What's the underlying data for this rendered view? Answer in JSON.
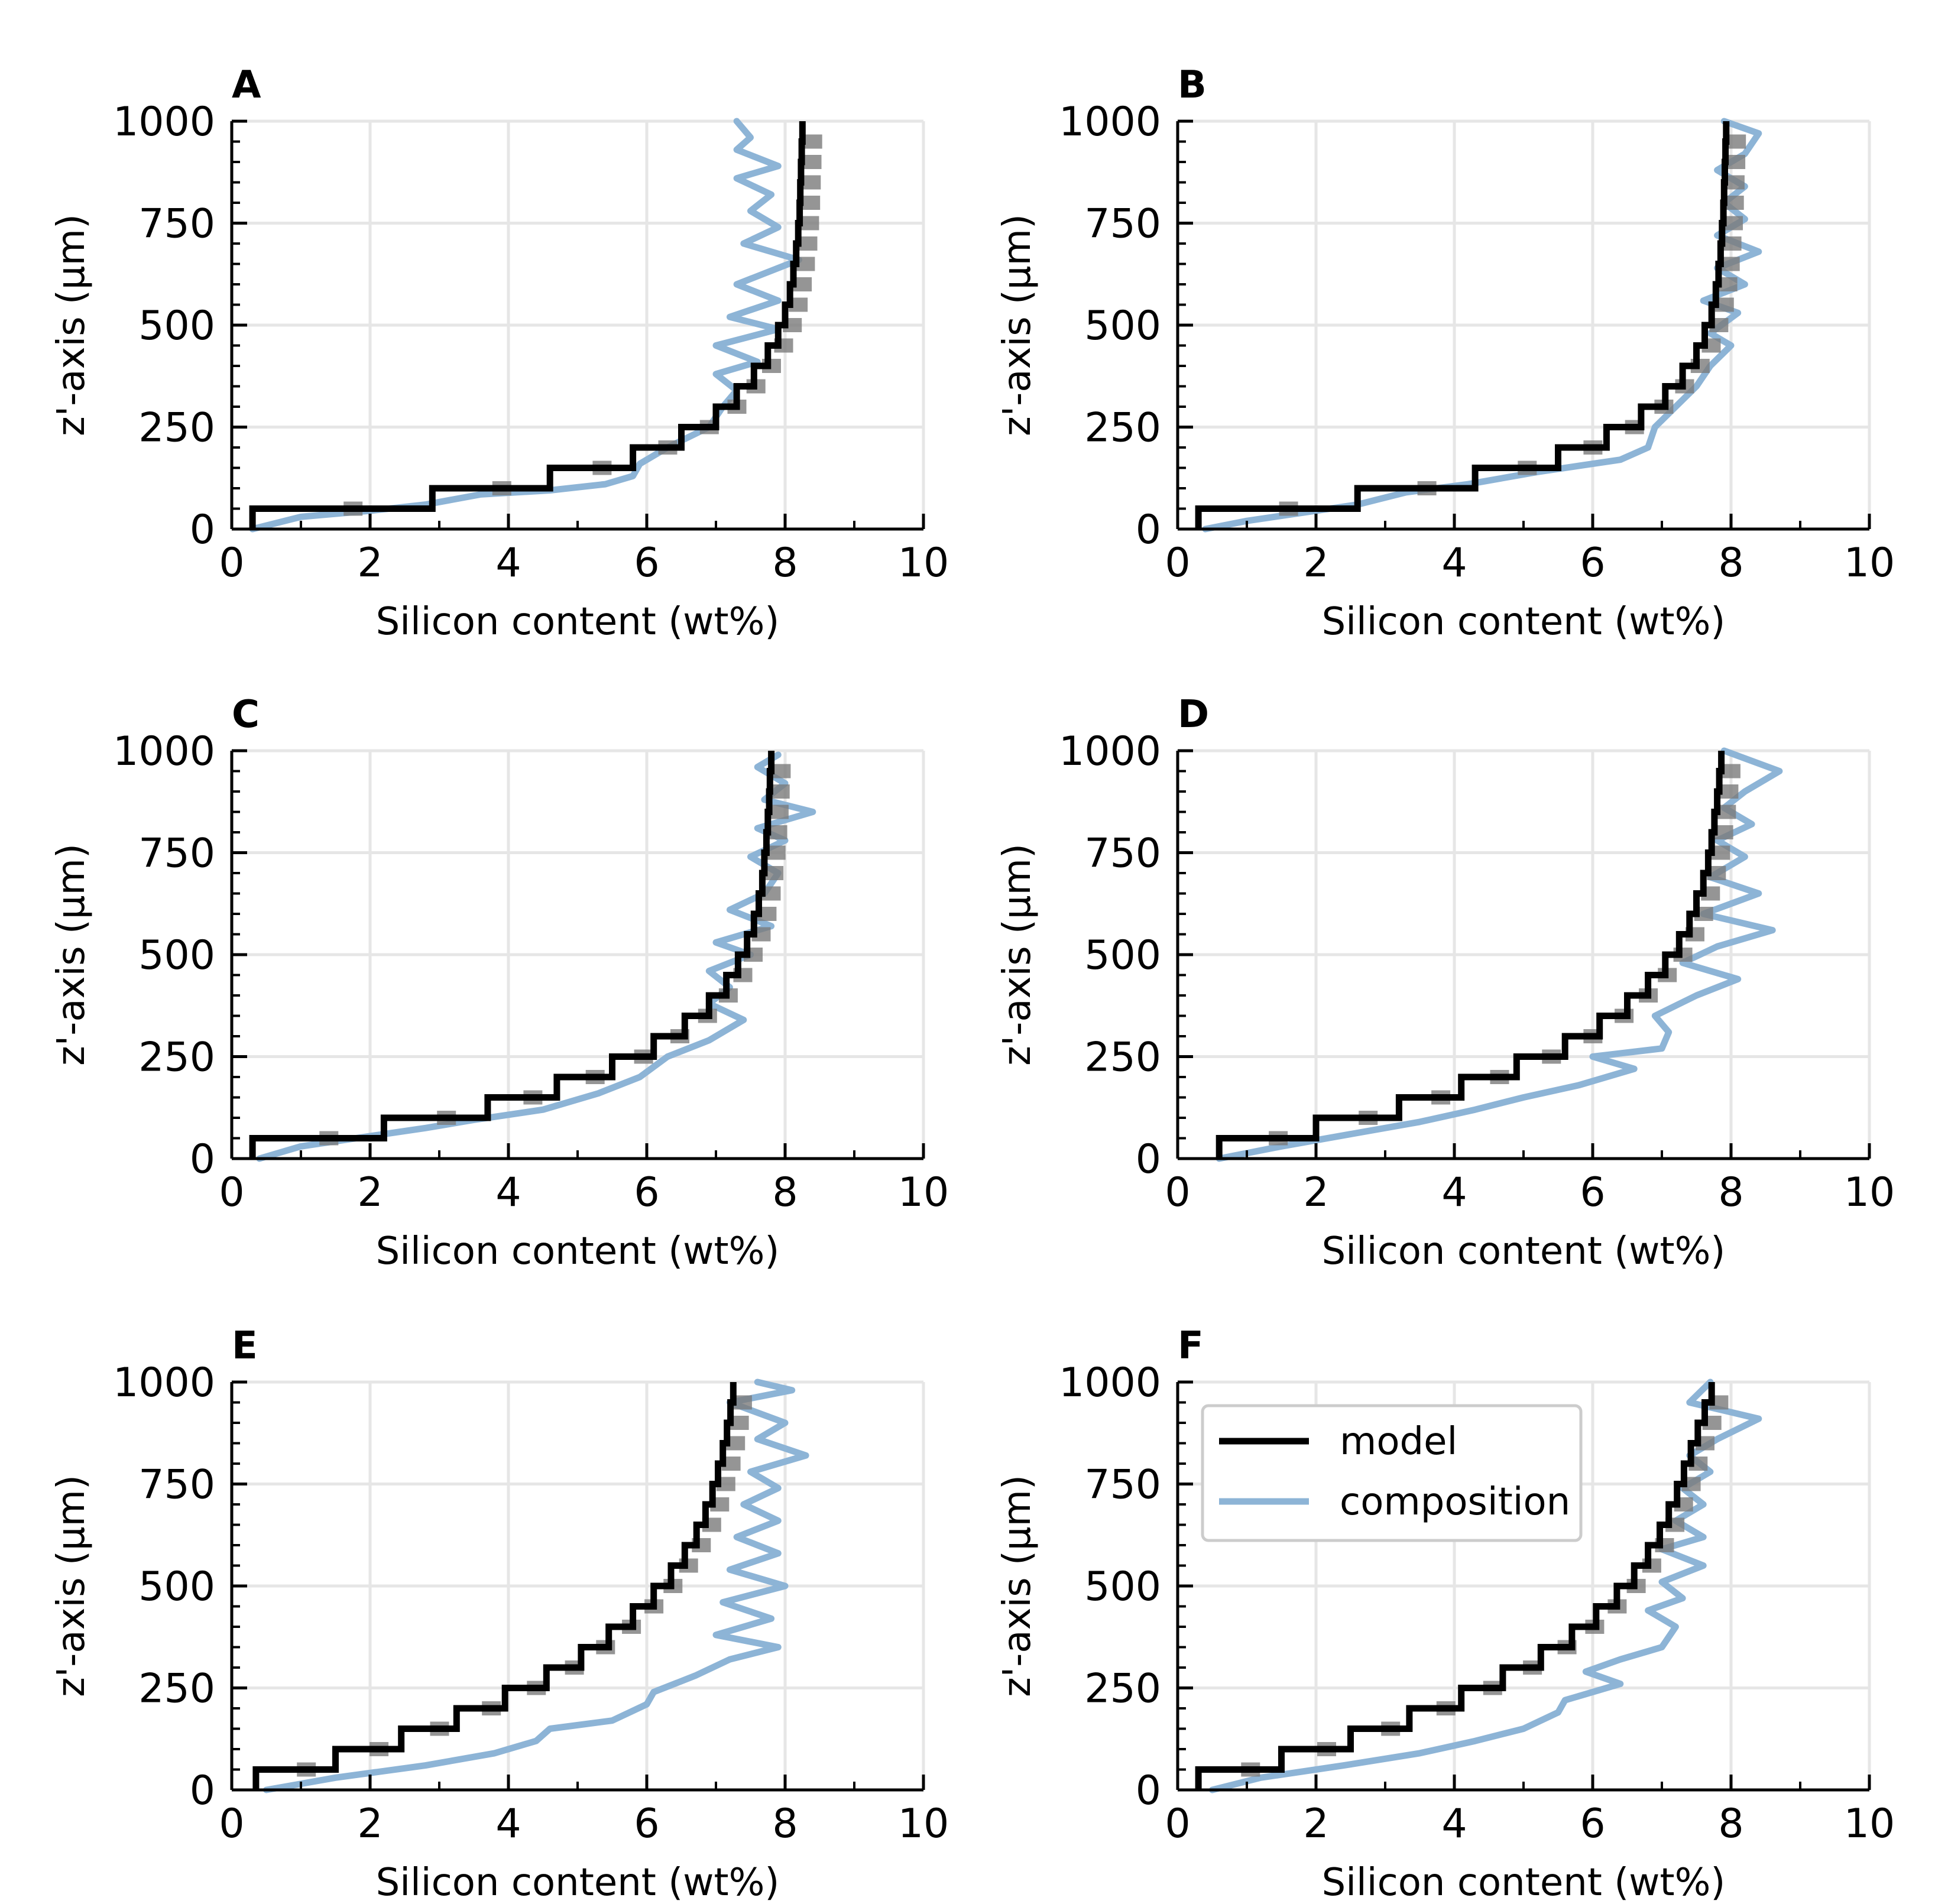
{
  "figure": {
    "legend": {
      "model_label": "model",
      "composition_label": "composition"
    }
  },
  "colors": {
    "model": "#000000",
    "model_shadow": "#7a7a7a",
    "composition": "#8db4d6",
    "grid": "#e6e6e6",
    "axis": "#000000"
  },
  "chart_data": [
    {
      "type": "line",
      "panel_label": "A",
      "xlabel": "Silicon content (wt%)",
      "ylabel": "z'-axis (μm)",
      "xlim": [
        0,
        10
      ],
      "ylim": [
        0,
        1000
      ],
      "xticks": [
        "0",
        "2",
        "4",
        "6",
        "8",
        "10"
      ],
      "yticks": [
        "0",
        "250",
        "500",
        "750",
        "1000"
      ],
      "grid": true,
      "legend": false,
      "model_steps": [
        [
          0.3,
          0,
          50
        ],
        [
          2.9,
          50,
          100
        ],
        [
          4.6,
          100,
          150
        ],
        [
          5.8,
          150,
          200
        ],
        [
          6.5,
          200,
          250
        ],
        [
          7.0,
          250,
          300
        ],
        [
          7.3,
          300,
          350
        ],
        [
          7.55,
          350,
          400
        ],
        [
          7.75,
          400,
          450
        ],
        [
          7.9,
          450,
          500
        ],
        [
          8.0,
          500,
          550
        ],
        [
          8.07,
          550,
          600
        ],
        [
          8.12,
          600,
          650
        ],
        [
          8.16,
          650,
          700
        ],
        [
          8.19,
          700,
          750
        ],
        [
          8.21,
          750,
          800
        ],
        [
          8.22,
          800,
          850
        ],
        [
          8.23,
          850,
          900
        ],
        [
          8.24,
          900,
          950
        ],
        [
          8.25,
          950,
          1000
        ]
      ],
      "composition": [
        [
          0.3,
          0
        ],
        [
          1.0,
          30
        ],
        [
          2.0,
          45
        ],
        [
          2.8,
          60
        ],
        [
          3.6,
          85
        ],
        [
          4.6,
          95
        ],
        [
          5.4,
          110
        ],
        [
          5.8,
          130
        ],
        [
          5.9,
          160
        ],
        [
          6.3,
          200
        ],
        [
          6.9,
          250
        ],
        [
          7.1,
          300
        ],
        [
          7.3,
          340
        ],
        [
          7.0,
          380
        ],
        [
          7.6,
          410
        ],
        [
          7.0,
          450
        ],
        [
          7.9,
          490
        ],
        [
          7.2,
          520
        ],
        [
          7.9,
          560
        ],
        [
          7.3,
          600
        ],
        [
          8.2,
          660
        ],
        [
          7.4,
          700
        ],
        [
          7.9,
          740
        ],
        [
          7.5,
          780
        ],
        [
          7.8,
          820
        ],
        [
          7.3,
          860
        ],
        [
          7.9,
          890
        ],
        [
          7.3,
          930
        ],
        [
          7.5,
          960
        ],
        [
          7.3,
          1000
        ]
      ]
    },
    {
      "type": "line",
      "panel_label": "B",
      "xlabel": "Silicon content (wt%)",
      "ylabel": "z'-axis (μm)",
      "xlim": [
        0,
        10
      ],
      "ylim": [
        0,
        1000
      ],
      "xticks": [
        "0",
        "2",
        "4",
        "6",
        "8",
        "10"
      ],
      "yticks": [
        "0",
        "250",
        "500",
        "750",
        "1000"
      ],
      "grid": true,
      "legend": false,
      "model_steps": [
        [
          0.3,
          0,
          50
        ],
        [
          2.6,
          50,
          100
        ],
        [
          4.3,
          100,
          150
        ],
        [
          5.5,
          150,
          200
        ],
        [
          6.2,
          200,
          250
        ],
        [
          6.7,
          250,
          300
        ],
        [
          7.05,
          300,
          350
        ],
        [
          7.3,
          350,
          400
        ],
        [
          7.5,
          400,
          450
        ],
        [
          7.62,
          450,
          500
        ],
        [
          7.72,
          500,
          550
        ],
        [
          7.78,
          550,
          600
        ],
        [
          7.82,
          600,
          650
        ],
        [
          7.85,
          650,
          700
        ],
        [
          7.87,
          700,
          750
        ],
        [
          7.89,
          750,
          800
        ],
        [
          7.9,
          800,
          850
        ],
        [
          7.91,
          850,
          900
        ],
        [
          7.92,
          900,
          950
        ],
        [
          7.93,
          950,
          1000
        ]
      ],
      "composition": [
        [
          0.4,
          0
        ],
        [
          1.0,
          20
        ],
        [
          1.8,
          40
        ],
        [
          2.6,
          60
        ],
        [
          3.3,
          90
        ],
        [
          4.2,
          110
        ],
        [
          5.2,
          140
        ],
        [
          6.4,
          170
        ],
        [
          6.8,
          200
        ],
        [
          6.9,
          250
        ],
        [
          7.2,
          300
        ],
        [
          7.5,
          350
        ],
        [
          7.7,
          400
        ],
        [
          8.0,
          450
        ],
        [
          7.7,
          480
        ],
        [
          8.1,
          530
        ],
        [
          7.6,
          560
        ],
        [
          8.2,
          600
        ],
        [
          7.8,
          640
        ],
        [
          8.4,
          680
        ],
        [
          7.8,
          720
        ],
        [
          8.2,
          760
        ],
        [
          7.9,
          800
        ],
        [
          8.2,
          840
        ],
        [
          7.8,
          880
        ],
        [
          8.2,
          920
        ],
        [
          8.4,
          970
        ],
        [
          7.9,
          1000
        ]
      ]
    },
    {
      "type": "line",
      "panel_label": "C",
      "xlabel": "Silicon content (wt%)",
      "ylabel": "z'-axis (μm)",
      "xlim": [
        0,
        10
      ],
      "ylim": [
        0,
        1000
      ],
      "xticks": [
        "0",
        "2",
        "4",
        "6",
        "8",
        "10"
      ],
      "yticks": [
        "0",
        "250",
        "500",
        "750",
        "1000"
      ],
      "grid": true,
      "legend": false,
      "model_steps": [
        [
          0.3,
          0,
          50
        ],
        [
          2.2,
          50,
          100
        ],
        [
          3.7,
          100,
          150
        ],
        [
          4.7,
          150,
          200
        ],
        [
          5.5,
          200,
          250
        ],
        [
          6.1,
          250,
          300
        ],
        [
          6.55,
          300,
          350
        ],
        [
          6.9,
          350,
          400
        ],
        [
          7.15,
          400,
          450
        ],
        [
          7.32,
          450,
          500
        ],
        [
          7.45,
          500,
          550
        ],
        [
          7.55,
          550,
          600
        ],
        [
          7.62,
          600,
          650
        ],
        [
          7.67,
          650,
          700
        ],
        [
          7.7,
          700,
          750
        ],
        [
          7.73,
          750,
          800
        ],
        [
          7.75,
          800,
          850
        ],
        [
          7.77,
          850,
          900
        ],
        [
          7.78,
          900,
          950
        ],
        [
          7.8,
          950,
          1000
        ]
      ],
      "composition": [
        [
          0.4,
          0
        ],
        [
          1.0,
          30
        ],
        [
          2.0,
          55
        ],
        [
          2.8,
          75
        ],
        [
          3.5,
          95
        ],
        [
          4.5,
          120
        ],
        [
          5.3,
          160
        ],
        [
          5.9,
          200
        ],
        [
          6.3,
          250
        ],
        [
          6.9,
          290
        ],
        [
          7.4,
          340
        ],
        [
          6.9,
          380
        ],
        [
          7.2,
          420
        ],
        [
          6.9,
          460
        ],
        [
          7.5,
          500
        ],
        [
          7.0,
          530
        ],
        [
          7.8,
          570
        ],
        [
          7.2,
          610
        ],
        [
          7.7,
          650
        ],
        [
          7.9,
          700
        ],
        [
          7.5,
          740
        ],
        [
          8.0,
          780
        ],
        [
          7.6,
          810
        ],
        [
          8.4,
          850
        ],
        [
          7.7,
          880
        ],
        [
          8.0,
          920
        ],
        [
          7.6,
          960
        ],
        [
          7.9,
          990
        ]
      ]
    },
    {
      "type": "line",
      "panel_label": "D",
      "xlabel": "Silicon content (wt%)",
      "ylabel": "z'-axis (μm)",
      "xlim": [
        0,
        10
      ],
      "ylim": [
        0,
        1000
      ],
      "xticks": [
        "0",
        "2",
        "4",
        "6",
        "8",
        "10"
      ],
      "yticks": [
        "0",
        "250",
        "500",
        "750",
        "1000"
      ],
      "grid": true,
      "legend": false,
      "model_steps": [
        [
          0.6,
          0,
          50
        ],
        [
          2.0,
          50,
          100
        ],
        [
          3.2,
          100,
          150
        ],
        [
          4.1,
          150,
          200
        ],
        [
          4.9,
          200,
          250
        ],
        [
          5.6,
          250,
          300
        ],
        [
          6.1,
          300,
          350
        ],
        [
          6.5,
          350,
          400
        ],
        [
          6.8,
          400,
          450
        ],
        [
          7.05,
          450,
          500
        ],
        [
          7.25,
          500,
          550
        ],
        [
          7.4,
          550,
          600
        ],
        [
          7.5,
          600,
          650
        ],
        [
          7.6,
          650,
          700
        ],
        [
          7.67,
          700,
          750
        ],
        [
          7.72,
          750,
          800
        ],
        [
          7.76,
          800,
          850
        ],
        [
          7.8,
          850,
          900
        ],
        [
          7.83,
          900,
          950
        ],
        [
          7.86,
          950,
          1000
        ]
      ],
      "composition": [
        [
          0.6,
          0
        ],
        [
          1.5,
          30
        ],
        [
          2.5,
          60
        ],
        [
          3.5,
          90
        ],
        [
          4.3,
          120
        ],
        [
          5.0,
          150
        ],
        [
          5.8,
          180
        ],
        [
          6.6,
          220
        ],
        [
          6.0,
          250
        ],
        [
          7.0,
          270
        ],
        [
          7.1,
          310
        ],
        [
          6.9,
          350
        ],
        [
          7.5,
          400
        ],
        [
          8.1,
          440
        ],
        [
          7.3,
          480
        ],
        [
          7.8,
          520
        ],
        [
          8.6,
          560
        ],
        [
          7.6,
          600
        ],
        [
          8.4,
          650
        ],
        [
          7.7,
          690
        ],
        [
          8.2,
          740
        ],
        [
          7.8,
          780
        ],
        [
          8.3,
          820
        ],
        [
          7.9,
          860
        ],
        [
          8.2,
          900
        ],
        [
          8.7,
          950
        ],
        [
          7.9,
          1000
        ]
      ]
    },
    {
      "type": "line",
      "panel_label": "E",
      "xlabel": "Silicon content (wt%)",
      "ylabel": "z'-axis (μm)",
      "xlim": [
        0,
        10
      ],
      "ylim": [
        0,
        1000
      ],
      "xticks": [
        "0",
        "2",
        "4",
        "6",
        "8",
        "10"
      ],
      "yticks": [
        "0",
        "250",
        "500",
        "750",
        "1000"
      ],
      "grid": true,
      "legend": false,
      "model_steps": [
        [
          0.35,
          0,
          50
        ],
        [
          1.5,
          50,
          100
        ],
        [
          2.45,
          100,
          150
        ],
        [
          3.25,
          150,
          200
        ],
        [
          3.95,
          200,
          250
        ],
        [
          4.55,
          250,
          300
        ],
        [
          5.05,
          300,
          350
        ],
        [
          5.45,
          350,
          400
        ],
        [
          5.8,
          400,
          450
        ],
        [
          6.1,
          450,
          500
        ],
        [
          6.35,
          500,
          550
        ],
        [
          6.55,
          550,
          600
        ],
        [
          6.72,
          600,
          650
        ],
        [
          6.85,
          650,
          700
        ],
        [
          6.95,
          700,
          750
        ],
        [
          7.03,
          750,
          800
        ],
        [
          7.1,
          800,
          850
        ],
        [
          7.16,
          850,
          900
        ],
        [
          7.21,
          900,
          950
        ],
        [
          7.25,
          950,
          1000
        ]
      ],
      "composition": [
        [
          0.5,
          0
        ],
        [
          1.5,
          30
        ],
        [
          2.8,
          60
        ],
        [
          3.8,
          90
        ],
        [
          4.4,
          120
        ],
        [
          4.6,
          150
        ],
        [
          5.5,
          170
        ],
        [
          6.0,
          210
        ],
        [
          6.1,
          240
        ],
        [
          6.7,
          280
        ],
        [
          7.2,
          320
        ],
        [
          7.9,
          350
        ],
        [
          7.0,
          380
        ],
        [
          7.8,
          420
        ],
        [
          7.1,
          460
        ],
        [
          8.0,
          500
        ],
        [
          7.2,
          540
        ],
        [
          7.9,
          580
        ],
        [
          7.3,
          620
        ],
        [
          7.9,
          660
        ],
        [
          7.4,
          700
        ],
        [
          7.9,
          740
        ],
        [
          7.5,
          780
        ],
        [
          8.3,
          820
        ],
        [
          7.6,
          860
        ],
        [
          8.0,
          900
        ],
        [
          7.2,
          950
        ],
        [
          8.1,
          980
        ],
        [
          7.6,
          1000
        ]
      ]
    },
    {
      "type": "line",
      "panel_label": "F",
      "xlabel": "Silicon content (wt%)",
      "ylabel": "z'-axis (μm)",
      "xlim": [
        0,
        10
      ],
      "ylim": [
        0,
        1000
      ],
      "xticks": [
        "0",
        "2",
        "4",
        "6",
        "8",
        "10"
      ],
      "yticks": [
        "0",
        "250",
        "500",
        "750",
        "1000"
      ],
      "grid": true,
      "legend": true,
      "legend_loc": "top-left",
      "model_steps": [
        [
          0.3,
          0,
          50
        ],
        [
          1.5,
          50,
          100
        ],
        [
          2.5,
          100,
          150
        ],
        [
          3.35,
          150,
          200
        ],
        [
          4.1,
          200,
          250
        ],
        [
          4.7,
          250,
          300
        ],
        [
          5.25,
          300,
          350
        ],
        [
          5.7,
          350,
          400
        ],
        [
          6.05,
          400,
          450
        ],
        [
          6.35,
          450,
          500
        ],
        [
          6.6,
          500,
          550
        ],
        [
          6.8,
          550,
          600
        ],
        [
          6.97,
          600,
          650
        ],
        [
          7.1,
          650,
          700
        ],
        [
          7.22,
          700,
          750
        ],
        [
          7.32,
          750,
          800
        ],
        [
          7.42,
          800,
          850
        ],
        [
          7.52,
          850,
          900
        ],
        [
          7.62,
          900,
          950
        ],
        [
          7.72,
          950,
          1000
        ]
      ],
      "composition": [
        [
          0.5,
          0
        ],
        [
          1.2,
          30
        ],
        [
          2.4,
          60
        ],
        [
          3.5,
          90
        ],
        [
          4.3,
          120
        ],
        [
          5.0,
          150
        ],
        [
          5.5,
          190
        ],
        [
          5.6,
          220
        ],
        [
          6.4,
          260
        ],
        [
          5.9,
          290
        ],
        [
          6.4,
          320
        ],
        [
          7.0,
          350
        ],
        [
          7.2,
          400
        ],
        [
          6.8,
          440
        ],
        [
          7.3,
          470
        ],
        [
          7.0,
          510
        ],
        [
          7.6,
          550
        ],
        [
          7.0,
          590
        ],
        [
          7.6,
          620
        ],
        [
          7.2,
          660
        ],
        [
          7.6,
          700
        ],
        [
          7.3,
          740
        ],
        [
          7.7,
          780
        ],
        [
          7.4,
          820
        ],
        [
          7.8,
          860
        ],
        [
          8.4,
          910
        ],
        [
          7.4,
          950
        ],
        [
          7.7,
          1000
        ]
      ]
    }
  ]
}
